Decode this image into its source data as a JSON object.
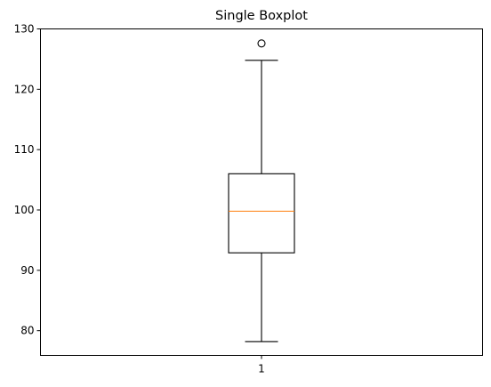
{
  "chart_data": {
    "type": "boxplot",
    "title": "Single Boxplot",
    "xlabel": "",
    "ylabel": "",
    "ylim": [
      75.9,
      130
    ],
    "yticks": [
      80,
      90,
      100,
      110,
      120,
      130
    ],
    "yticklabels": [
      "80",
      "90",
      "100",
      "110",
      "120",
      "130"
    ],
    "categories": [
      "1"
    ],
    "boxes": [
      {
        "category": "1",
        "whisker_low": 78.2,
        "q1": 92.9,
        "median": 99.8,
        "q3": 106.0,
        "whisker_high": 124.8,
        "outliers": [
          127.6
        ]
      }
    ],
    "colors": {
      "box": "#000000",
      "median": "#ff7f0e",
      "outlier": "#000000"
    },
    "grid": false
  }
}
